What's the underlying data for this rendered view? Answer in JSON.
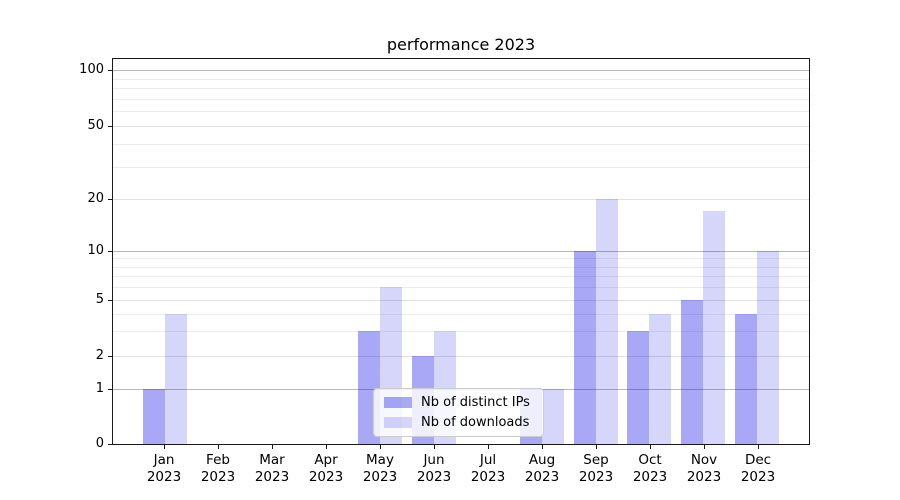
{
  "chart_data": {
    "type": "bar",
    "title": "performance 2023",
    "categories": [
      "Jan 2023",
      "Feb 2023",
      "Mar 2023",
      "Apr 2023",
      "May 2023",
      "Jun 2023",
      "Jul 2023",
      "Aug 2023",
      "Sep 2023",
      "Oct 2023",
      "Nov 2023",
      "Dec 2023"
    ],
    "series": [
      {
        "name": "Nb of distinct IPs",
        "color": "rgba(0,0,230,0.34)",
        "values": [
          1,
          0,
          0,
          0,
          3,
          2,
          0,
          1,
          10,
          3,
          5,
          4
        ]
      },
      {
        "name": "Nb of downloads",
        "color": "rgba(0,0,230,0.16)",
        "values": [
          4,
          0,
          0,
          0,
          6,
          3,
          0,
          1,
          20,
          4,
          17,
          10
        ]
      }
    ],
    "yaxis": {
      "scale": "log-like with 0 baseline",
      "tick_labels": [
        0,
        1,
        2,
        5,
        10,
        20,
        50,
        100
      ],
      "decade_ticks": [
        1,
        10,
        100
      ],
      "minor_gridlines": [
        3,
        4,
        6,
        7,
        8,
        9,
        30,
        40,
        60,
        70,
        80,
        90
      ],
      "range": [
        0,
        120
      ]
    },
    "legend": {
      "position": "lower center",
      "entries": [
        "Nb of distinct IPs",
        "Nb of downloads"
      ]
    },
    "grid": true
  },
  "colors": {
    "bar_distinct_ips": "rgba(0,0,230,0.34)",
    "bar_downloads": "rgba(0,0,230,0.16)",
    "decade_gridline": "#b9b9b9",
    "labeled_gridline": "#e0e0e3",
    "minor_gridline": "#ededf0",
    "spine": "#1a1a1a",
    "text": "#000000"
  }
}
